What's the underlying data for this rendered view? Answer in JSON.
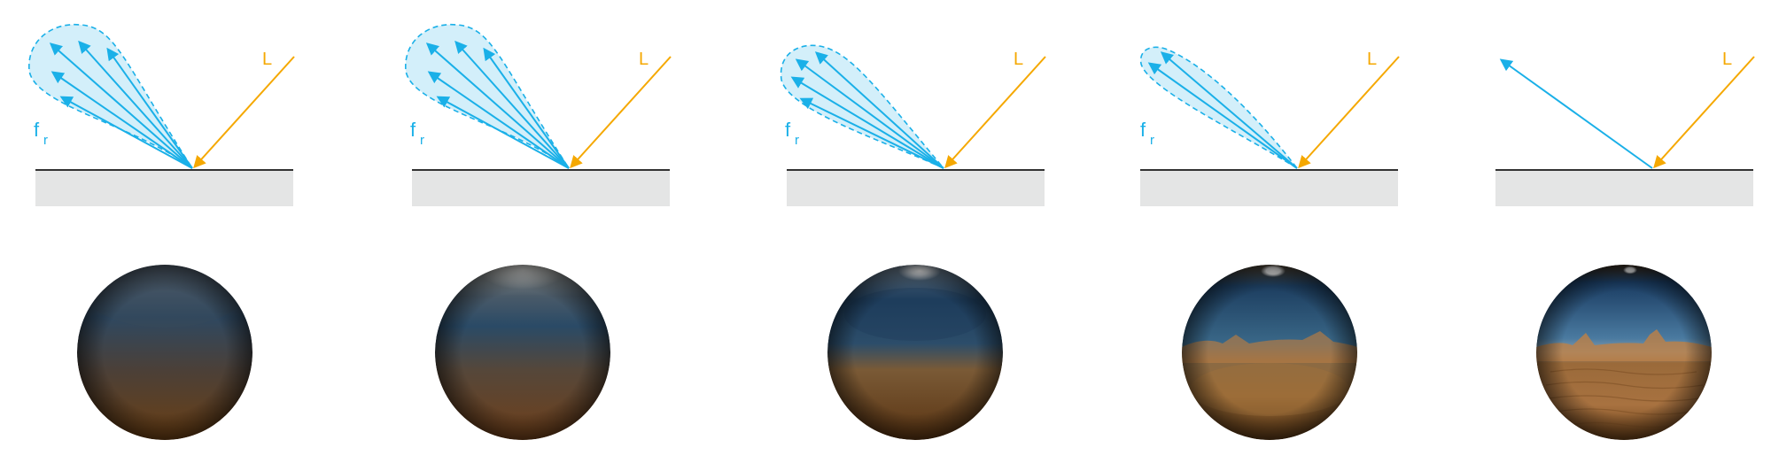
{
  "colors": {
    "light": "#f5a800",
    "reflect": "#1ab0e8",
    "lobe_fill": "#d3effa",
    "surface_line": "#333333",
    "surface_fill": "#e4e5e5"
  },
  "labels": {
    "light": "L",
    "brdf_f": "f",
    "brdf_sub": "r"
  },
  "panels": [
    {
      "roughness_level": 1.0,
      "lobe": "wide",
      "show_brdf_label": true,
      "arrows": 5
    },
    {
      "roughness_level": 0.75,
      "lobe": "wide",
      "show_brdf_label": true,
      "arrows": 5
    },
    {
      "roughness_level": 0.5,
      "lobe": "medium",
      "show_brdf_label": true,
      "arrows": 4
    },
    {
      "roughness_level": 0.25,
      "lobe": "narrow",
      "show_brdf_label": true,
      "arrows": 2
    },
    {
      "roughness_level": 0.0,
      "lobe": "none",
      "show_brdf_label": false,
      "arrows": 1
    }
  ]
}
